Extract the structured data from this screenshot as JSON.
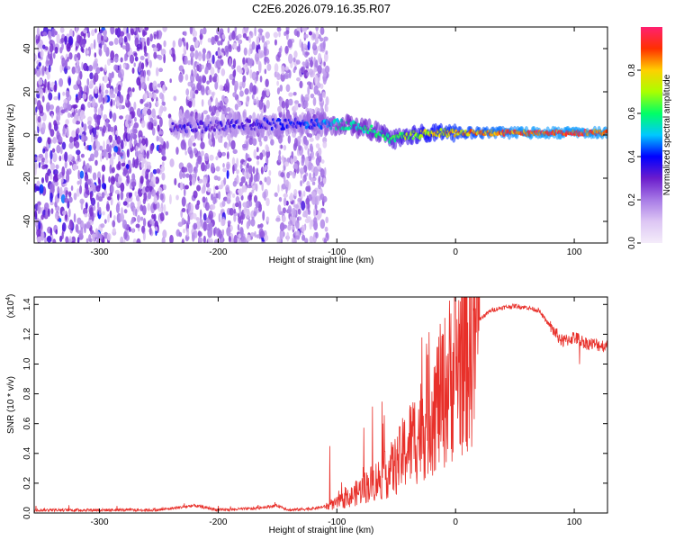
{
  "figure_title": "C2E6.2026.079.16.35.R07",
  "chart_data": [
    {
      "type": "heatmap",
      "name": "spectrogram",
      "xlabel": "Height of straight line (km)",
      "ylabel": "Frequency (Hz)",
      "xlim": [
        -355,
        128
      ],
      "ylim": [
        -50,
        50
      ],
      "xticks": [
        -300,
        -200,
        -100,
        0,
        100
      ],
      "yticks": [
        -40,
        -20,
        0,
        20,
        40
      ],
      "xtick_labels": [
        "-300",
        "-200",
        "-100",
        "0",
        "100"
      ],
      "ytick_labels": [
        "-40",
        "-20",
        "0",
        "20",
        "40"
      ],
      "colorbar": {
        "label": "Normalized spectral amplitude",
        "range": [
          0,
          1
        ],
        "ticks": [
          0.0,
          0.2,
          0.4,
          0.6,
          0.8
        ],
        "tick_labels": [
          "0.0",
          "0.2",
          "0.4",
          "0.6",
          "0.8"
        ],
        "colors": [
          "#f4ecfa",
          "#ddc6f4",
          "#a77ae6",
          "#6b1ccc",
          "#0000ff",
          "#00c8ff",
          "#00ff66",
          "#aaff00",
          "#ffd000",
          "#ff3000",
          "#ff2070"
        ]
      },
      "noise_region_km": [
        -355,
        -108
      ],
      "noise_gaps_km": [
        [
          -245,
          -232
        ],
        [
          -158,
          -150
        ]
      ],
      "ridge": {
        "x_km": [
          -240,
          -200,
          -160,
          -120,
          -100,
          -85,
          -75,
          -65,
          -55,
          -45,
          -35,
          -20,
          0,
          30,
          60,
          90,
          128
        ],
        "freq_hz": [
          4,
          4,
          5,
          5,
          5,
          4,
          3,
          1,
          -2,
          -1,
          0,
          1,
          1,
          1,
          1,
          1,
          1
        ],
        "amplitude": [
          0.35,
          0.35,
          0.38,
          0.45,
          0.55,
          0.6,
          0.6,
          0.62,
          0.65,
          0.68,
          0.72,
          0.8,
          0.85,
          0.9,
          0.95,
          0.95,
          0.95
        ]
      }
    },
    {
      "type": "line",
      "name": "snr",
      "xlabel": "Height of straight line (km)",
      "ylabel": "SNR (10 * v/v)",
      "multiplier_label": "(x10",
      "multiplier_exp": "4",
      "multiplier_close": ")",
      "xlim": [
        -355,
        128
      ],
      "ylim": [
        0,
        1.45
      ],
      "xticks": [
        -300,
        -200,
        -100,
        0,
        100
      ],
      "yticks": [
        0.0,
        0.2,
        0.4,
        0.6,
        0.8,
        1.0,
        1.2,
        1.4
      ],
      "xtick_labels": [
        "-300",
        "-200",
        "-100",
        "0",
        "100"
      ],
      "ytick_labels": [
        "0.0",
        "0.2",
        "0.4",
        "0.6",
        "0.8",
        "1.0",
        "1.2",
        "1.4"
      ],
      "color": "#e8302a",
      "envelope": {
        "x": [
          -355,
          -300,
          -250,
          -230,
          -220,
          -200,
          -170,
          -150,
          -140,
          -120,
          -105,
          -90,
          -75,
          -60,
          -50,
          -40,
          -30,
          -20,
          -10,
          0,
          10,
          20,
          30,
          40,
          50,
          60,
          70,
          80,
          90,
          100,
          110,
          128
        ],
        "y": [
          0.02,
          0.02,
          0.02,
          0.04,
          0.05,
          0.02,
          0.03,
          0.05,
          0.02,
          0.03,
          0.05,
          0.1,
          0.18,
          0.25,
          0.32,
          0.45,
          0.55,
          0.7,
          0.8,
          1.0,
          1.1,
          1.3,
          1.36,
          1.38,
          1.39,
          1.38,
          1.36,
          1.25,
          1.15,
          1.18,
          1.14,
          1.12
        ]
      }
    }
  ]
}
